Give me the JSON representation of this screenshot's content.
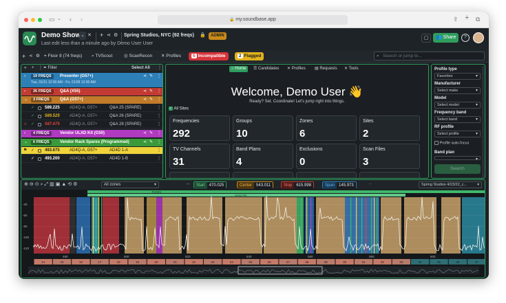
{
  "browser": {
    "url": "my.soundbase.app"
  },
  "header": {
    "title": "Demo Show",
    "subtitle": "Last edit less than a minute ago by Demo User User",
    "venue": "Spring Studios, NYC (92 freqs)",
    "role_badge": "ADMIN",
    "share_label": "Share"
  },
  "toolbar": {
    "floor": "Floor 8 (74 freqs)",
    "tvscout": "TVScout",
    "scanrecon": "ScanRecon",
    "profiles": "Profiles",
    "incompatible_count": "5",
    "incompatible_label": "Incompatible",
    "flagged_count": "2",
    "flagged_label": "Flagged",
    "search_placeholder": "Search or jump to..."
  },
  "left_panel": {
    "filter_label": "Filter",
    "select_all": "Select All",
    "groups": [
      {
        "count": "19 FREQS",
        "name": "Presenter (G57+)",
        "color": "#2d7fb8",
        "sub": "Tue, 01/11 12:00 AM - Fri, 01/28 12:00 AM"
      },
      {
        "count": "26 FREQS",
        "name": "Q&A (X55)",
        "color": "#c23b33"
      },
      {
        "count": "3 FREQS",
        "name": "Q&A (G57+)",
        "color": "#c07a2a"
      },
      {
        "count": "4 FREQS",
        "name": "Vendor ULXD Kit (G50)",
        "color": "#b03ac0"
      },
      {
        "count": "6 FREQS",
        "name": "Vendor Rack Spares (Programmed)",
        "color": "#3a9a3a"
      }
    ],
    "rows_qa": [
      {
        "freq": "589.225",
        "model": "AD4Q-A, G57+",
        "name": "Q&A 25 (SPARE)",
        "warn": false
      },
      {
        "freq": "589.525",
        "model": "AD4Q-A, G57+",
        "name": "Q&A 26 (SPARE)",
        "warn": false
      },
      {
        "freq": "587.675",
        "model": "AD4Q-A, G57+",
        "name": "Q&A 28 (SPARE)",
        "warn": true
      }
    ],
    "rows_vendor": [
      {
        "freq": "493.675",
        "model": "AD4Q-A, G57+",
        "name": "AD4D 1-A"
      },
      {
        "freq": "493.200",
        "model": "AD4Q-A, G57+",
        "name": "AD4D 1-B"
      }
    ]
  },
  "center": {
    "tabs": [
      "Home",
      "Candidates",
      "Profiles",
      "Requests",
      "Tools"
    ],
    "welcome": "Welcome, Demo User 👋",
    "tagline": "Ready? Set. Coordinate! Let's jump right into things.",
    "all_sites": "All Sites",
    "cards": [
      {
        "label": "Frequencies",
        "value": "292"
      },
      {
        "label": "Groups",
        "value": "10"
      },
      {
        "label": "Zones",
        "value": "6"
      },
      {
        "label": "Sites",
        "value": "2"
      },
      {
        "label": "TV Channels",
        "value": "31"
      },
      {
        "label": "Band Plans",
        "value": "4"
      },
      {
        "label": "Exclusions",
        "value": "0"
      },
      {
        "label": "Scan Files",
        "value": "3"
      }
    ]
  },
  "right_panel": {
    "fields": [
      {
        "label": "Profile type",
        "value": "Favorites"
      },
      {
        "label": "Manufacturer",
        "value": "Select make"
      },
      {
        "label": "Model",
        "value": "Select model"
      },
      {
        "label": "Frequency band",
        "value": "Select band"
      },
      {
        "label": "RF profile",
        "value": "Select profile"
      }
    ],
    "autofocus": "Profile auto-focus",
    "band_plan": "Band plan",
    "search_btn": "Search"
  },
  "spectrum": {
    "zones": "All zones",
    "start_label": "Start",
    "start_value": "470.025",
    "center_label": "Center",
    "center_value": "543.011",
    "stop_label": "Stop",
    "stop_value": "615.998",
    "span_label": "Span",
    "span_value": "145.973",
    "scan_file": "Spring Studios 4/23/22_c...",
    "band_top": "Rockline",
    "band_main": "Vendor Mic",
    "y_ticks": [
      "-40",
      "-60",
      "-80",
      "-100",
      "-120"
    ],
    "x_ticks": [
      "480",
      "500",
      "520",
      "540",
      "560",
      "580",
      "600"
    ],
    "channels": [
      "14",
      "15",
      "16",
      "17",
      "18",
      "19",
      "20",
      "21",
      "22",
      "23",
      "24",
      "25",
      "26",
      "27",
      "28",
      "29",
      "30",
      "31",
      "32",
      "33",
      "34",
      "35",
      "36",
      "37"
    ]
  }
}
